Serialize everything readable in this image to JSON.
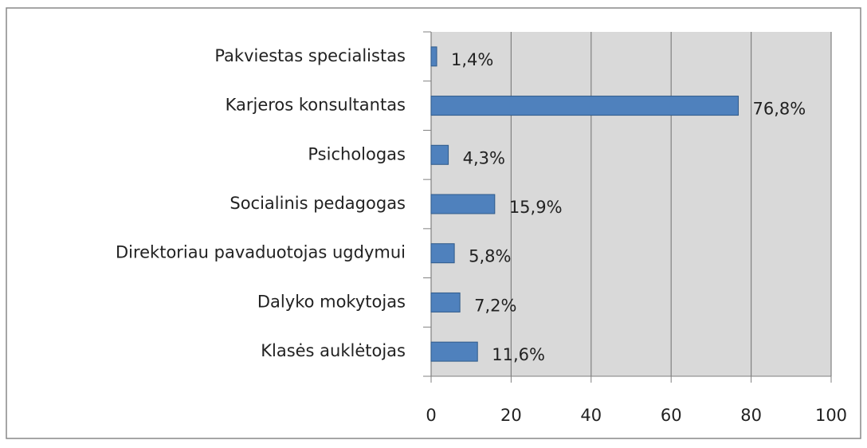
{
  "chart_data": {
    "type": "bar",
    "orientation": "horizontal",
    "categories": [
      "Pakviestas specialistas",
      "Karjeros konsultantas",
      "Psichologas",
      "Socialinis pedagogas",
      "Direktoriau pavaduotojas ugdymui",
      "Dalyko mokytojas",
      "Klasės auklėtojas"
    ],
    "values": [
      1.4,
      76.8,
      4.3,
      15.9,
      5.8,
      7.2,
      11.6
    ],
    "value_labels": [
      "1,4%",
      "76,8%",
      "4,3%",
      "15,9%",
      "5,8%",
      "7,2%",
      "11,6%"
    ],
    "color": "#4f81bd",
    "xlim": [
      0,
      100
    ],
    "xticks": [
      0,
      20,
      40,
      60,
      80,
      100
    ],
    "grid": true
  }
}
